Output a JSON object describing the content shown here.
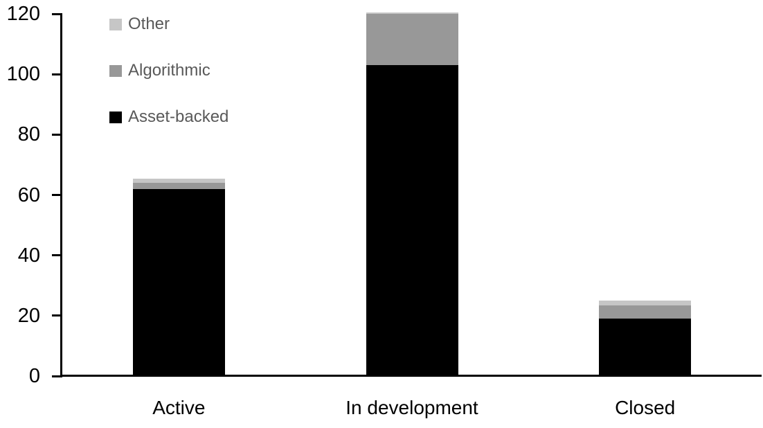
{
  "chart_data": {
    "type": "bar",
    "subtype": "stacked-vertical",
    "title": "",
    "xlabel": "",
    "ylabel": "",
    "categories": [
      "Active",
      "In development",
      "Closed"
    ],
    "series": [
      {
        "name": "Asset-backed",
        "color": "#000000",
        "values": [
          62,
          103,
          19
        ]
      },
      {
        "name": "Algorithmic",
        "color": "#989898",
        "values": [
          2,
          17,
          4.5
        ]
      },
      {
        "name": "Other",
        "color": "#c6c6c6",
        "values": [
          1.5,
          0.5,
          1.5
        ]
      }
    ],
    "totals": [
      65.5,
      120.5,
      25
    ],
    "ylim": [
      0,
      120
    ],
    "yticks": [
      0,
      20,
      40,
      60,
      80,
      100,
      120
    ],
    "grid": "off",
    "legend_position": "top-left-inside",
    "legend_order_top_to_bottom": [
      "Other",
      "Algorithmic",
      "Asset-backed"
    ],
    "axis_color": "#000000",
    "tick_label_color": "#000000",
    "legend_text_color": "#595959",
    "background_color": "#ffffff"
  }
}
